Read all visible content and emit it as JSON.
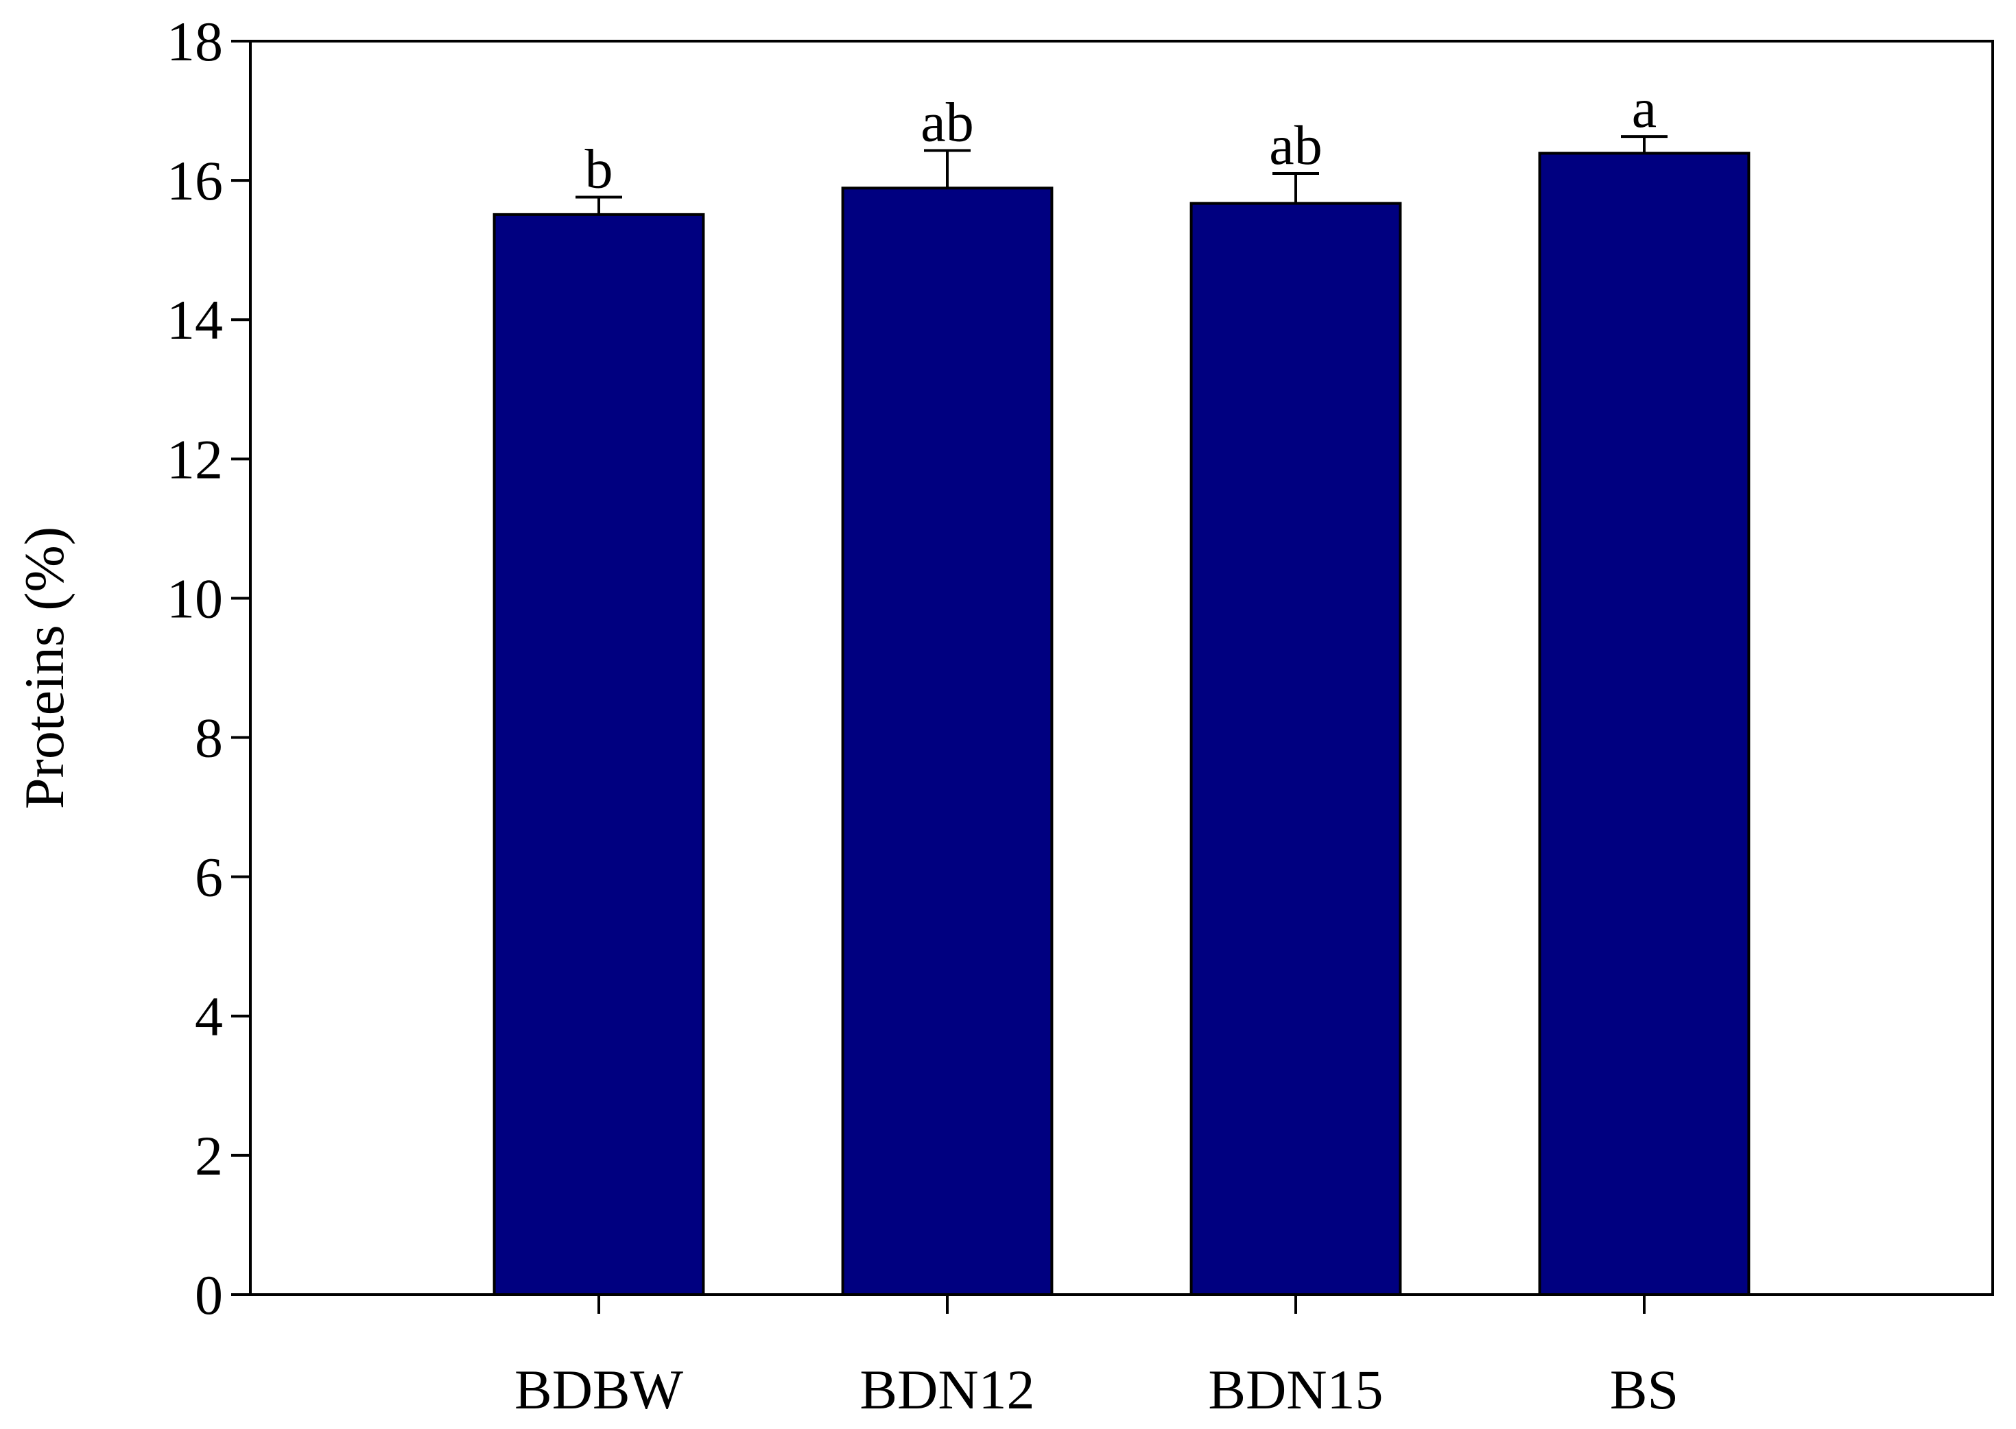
{
  "chart_data": {
    "type": "bar",
    "y_label": "Proteins (%)",
    "categories": [
      "BDBW",
      "BDN12",
      "BDN15",
      "BS"
    ],
    "values": [
      15.51,
      15.89,
      15.67,
      16.39
    ],
    "errors": [
      0.25,
      0.54,
      0.43,
      0.24
    ],
    "annotations": [
      "b",
      "ab",
      "ab",
      "a"
    ],
    "color": "#000080",
    "ylim": [
      0,
      18
    ],
    "yticks": [
      0,
      2,
      4,
      6,
      8,
      10,
      12,
      14,
      16,
      18
    ],
    "grid": false
  }
}
